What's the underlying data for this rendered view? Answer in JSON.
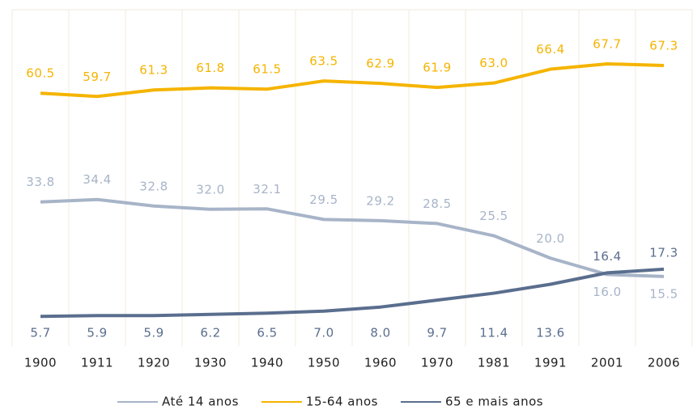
{
  "chart_data": {
    "type": "line",
    "categories": [
      "1900",
      "1911",
      "1920",
      "1930",
      "1940",
      "1950",
      "1960",
      "1970",
      "1981",
      "1991",
      "2001",
      "2006"
    ],
    "series": [
      {
        "name": "Até 14 anos",
        "color": "#a7b4c8",
        "values": [
          33.8,
          34.4,
          32.8,
          32.0,
          32.1,
          29.5,
          29.2,
          28.5,
          25.5,
          20.0,
          16.0,
          15.5
        ],
        "value_labels": [
          "33.8",
          "34.4",
          "32.8",
          "32.0",
          "32.1",
          "29.5",
          "29.2",
          "28.5",
          "25.5",
          "20.0",
          "16.0",
          "15.5"
        ]
      },
      {
        "name": "15-64 anos",
        "color": "#f5b400",
        "values": [
          60.5,
          59.7,
          61.3,
          61.8,
          61.5,
          63.5,
          62.9,
          61.9,
          63.0,
          66.4,
          67.7,
          67.3
        ],
        "value_labels": [
          "60.5",
          "59.7",
          "61.3",
          "61.8",
          "61.5",
          "63.5",
          "62.9",
          "61.9",
          "63.0",
          "66.4",
          "67.7",
          "67.3"
        ]
      },
      {
        "name": "65 e mais anos",
        "color": "#5a6e8e",
        "values": [
          5.7,
          5.9,
          5.9,
          6.2,
          6.5,
          7.0,
          8.0,
          9.7,
          11.4,
          13.6,
          16.4,
          17.3
        ],
        "value_labels": [
          "5.7",
          "5.9",
          "5.9",
          "6.2",
          "6.5",
          "7.0",
          "8.0",
          "9.7",
          "11.4",
          "13.6",
          "16.4",
          "17.3"
        ]
      }
    ],
    "ylim": [
      0,
      80
    ],
    "grid": true
  }
}
